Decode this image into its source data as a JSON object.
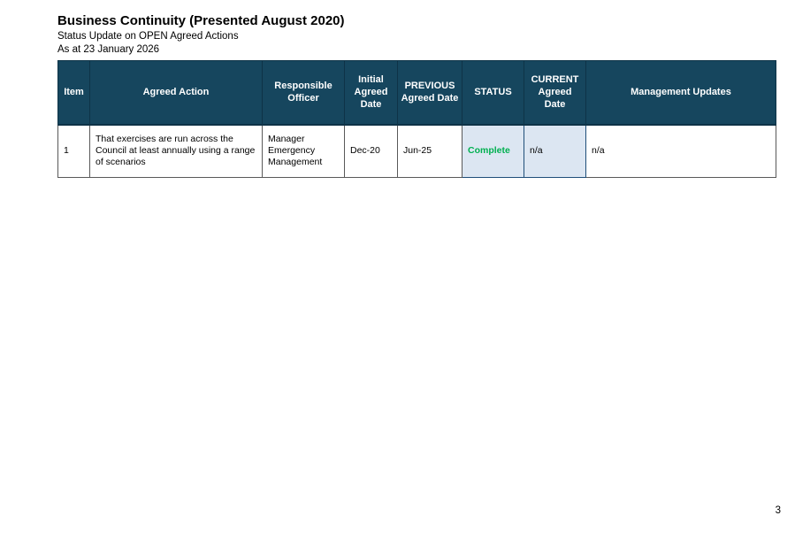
{
  "document": {
    "title": "Business Continuity (Presented August 2020)",
    "subtitle": "Status Update on OPEN Agreed Actions",
    "as_at": "As at 23 January 2026",
    "page_number": "3"
  },
  "colors": {
    "table_header_bg": "#16465e",
    "table_header_text": "#ffffff",
    "status_complete_text": "#00b050",
    "highlight_cell_bg": "#dce6f2",
    "cell_border": "#595959",
    "highlight_cell_border": "#1f4e79"
  },
  "table": {
    "columns": [
      "Item",
      "Agreed Action",
      "Responsible Officer",
      "Initial Agreed Date",
      "PREVIOUS Agreed Date",
      "STATUS",
      "CURRENT Agreed Date",
      "Management Updates"
    ],
    "rows": [
      {
        "item": "1",
        "agreed_action": "That exercises are run across the Council at least annually using a range of scenarios",
        "responsible_officer": "Manager Emergency Management",
        "initial_agreed_date": "Dec-20",
        "previous_agreed_date": "Jun-25",
        "status": "Complete",
        "current_agreed_date": "n/a",
        "management_updates": "n/a"
      }
    ]
  }
}
